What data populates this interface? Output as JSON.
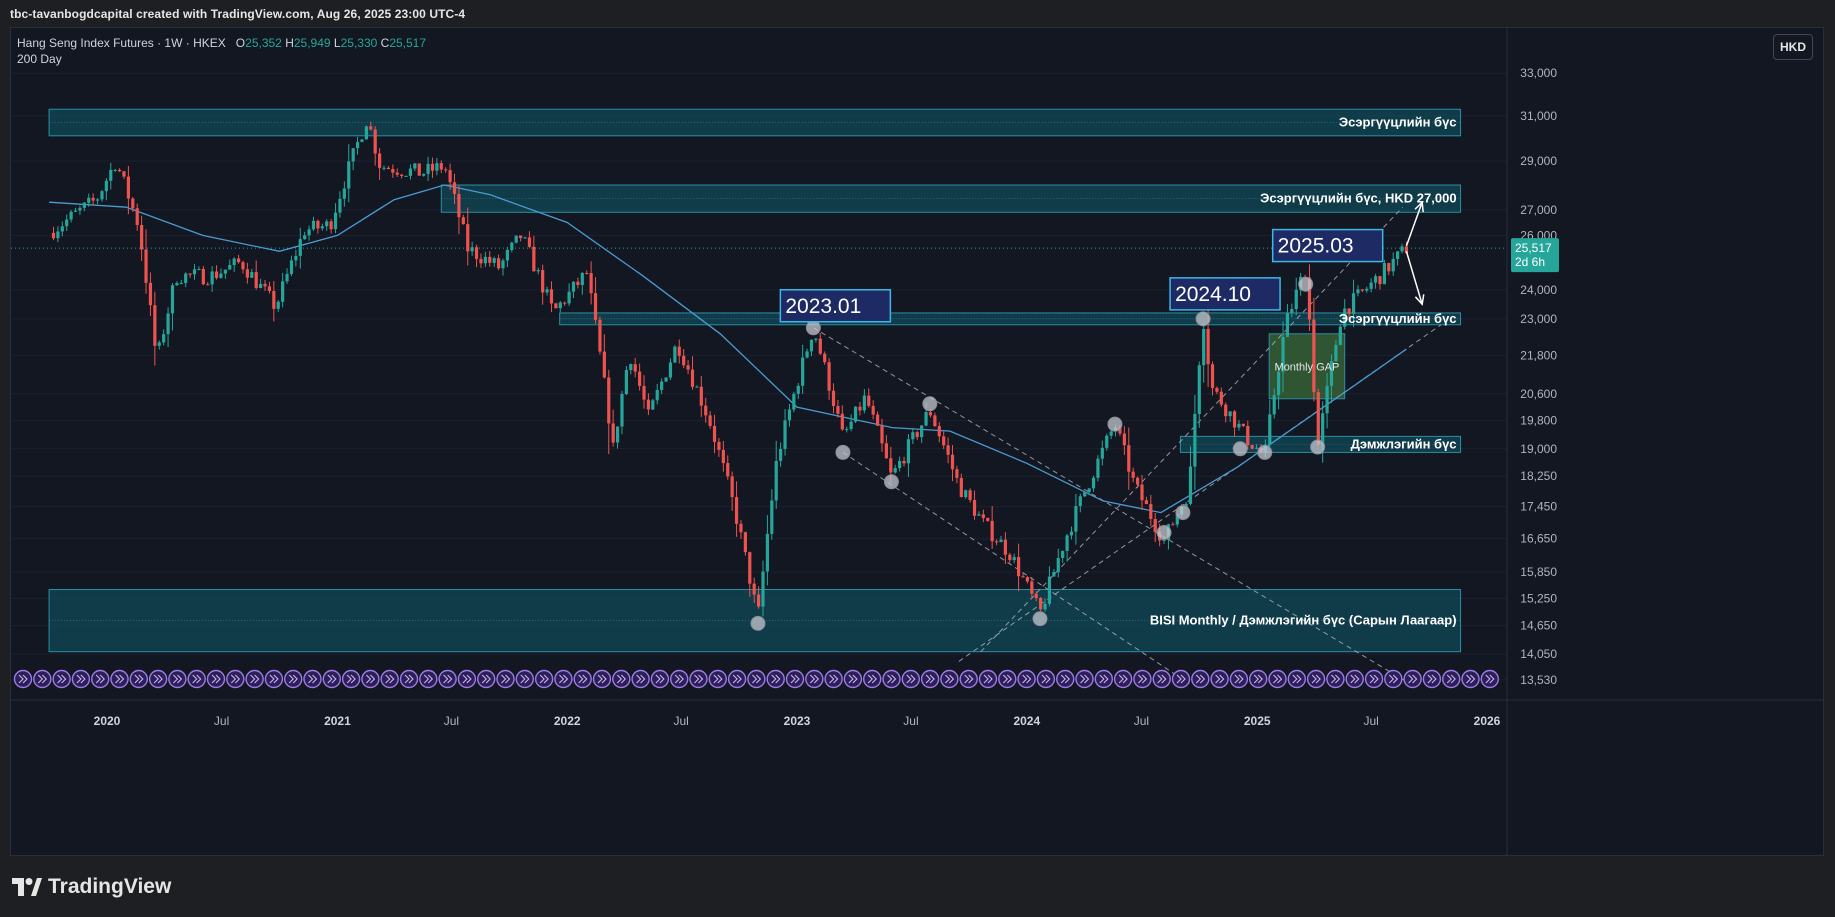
{
  "credit": "tbc-tavanbogdcapital created with TradingView.com, Aug 26, 2025 23:00 UTC-4",
  "legend": {
    "symbol_line": "Hang Seng Index Futures · 1W · HKEX",
    "o_label": "O",
    "o_value": "25,352",
    "h_label": "H",
    "h_value": "25,949",
    "l_label": "L",
    "l_value": "25,330",
    "c_label": "C",
    "c_value": "25,517",
    "indicator": "200 Day"
  },
  "currency": "HKD",
  "brand": "TradingView",
  "colors": {
    "up": "#26a69a",
    "down": "#ef5350",
    "ma": "#4a9bd1",
    "zone": "#0f5a6a",
    "gap_zone": "#3b6b3a",
    "label_box_border": "#3fb7e6",
    "label_box_fill": "#1d2a63",
    "price_tag": "#26a69a"
  },
  "chart_data": {
    "type": "candlestick",
    "timeframe": "1W",
    "x_ticks": [
      "2020",
      "Jul",
      "2021",
      "Jul",
      "2022",
      "Jul",
      "2023",
      "Jul",
      "2024",
      "Jul",
      "2025",
      "Jul",
      "2026"
    ],
    "y_ticks": [
      "33,000",
      "31,000",
      "29,000",
      "27,000",
      "26,000",
      "24,000",
      "23,000",
      "21,800",
      "20,600",
      "19,800",
      "19,000",
      "18,250",
      "17,450",
      "16,650",
      "15,850",
      "15,250",
      "14,650",
      "14,050",
      "13,530"
    ],
    "y_scale": "log",
    "y_range": [
      13250,
      34500
    ],
    "last_price": "25,517",
    "countdown": "2d 6h",
    "ohlc_last": {
      "open": 25352,
      "high": 25949,
      "low": 25330,
      "close": 25517
    },
    "keypoints": [
      {
        "date": "2019-10-01",
        "price": 26100
      },
      {
        "date": "2019-12-15",
        "price": 27400
      },
      {
        "date": "2020-01-15",
        "price": 29000
      },
      {
        "date": "2020-02-20",
        "price": 26400
      },
      {
        "date": "2020-03-20",
        "price": 21600
      },
      {
        "date": "2020-04-20",
        "price": 24500
      },
      {
        "date": "2020-06-15",
        "price": 24500
      },
      {
        "date": "2020-08-01",
        "price": 25000
      },
      {
        "date": "2020-09-25",
        "price": 23400
      },
      {
        "date": "2020-11-10",
        "price": 26200
      },
      {
        "date": "2020-12-20",
        "price": 26400
      },
      {
        "date": "2021-02-17",
        "price": 30900
      },
      {
        "date": "2021-03-10",
        "price": 28800
      },
      {
        "date": "2021-05-15",
        "price": 28500
      },
      {
        "date": "2021-06-20",
        "price": 28800
      },
      {
        "date": "2021-07-27",
        "price": 25500
      },
      {
        "date": "2021-09-15",
        "price": 24800
      },
      {
        "date": "2021-10-20",
        "price": 26000
      },
      {
        "date": "2021-12-10",
        "price": 23200
      },
      {
        "date": "2022-02-01",
        "price": 24600
      },
      {
        "date": "2022-03-15",
        "price": 19000
      },
      {
        "date": "2022-04-10",
        "price": 21900
      },
      {
        "date": "2022-05-10",
        "price": 19900
      },
      {
        "date": "2022-06-25",
        "price": 22200
      },
      {
        "date": "2022-08-15",
        "price": 19800
      },
      {
        "date": "2022-09-25",
        "price": 17300
      },
      {
        "date": "2022-10-31",
        "price": 14800
      },
      {
        "date": "2022-11-30",
        "price": 18700
      },
      {
        "date": "2023-01-27",
        "price": 22700
      },
      {
        "date": "2023-03-15",
        "price": 19300
      },
      {
        "date": "2023-04-20",
        "price": 20500
      },
      {
        "date": "2023-05-31",
        "price": 18200
      },
      {
        "date": "2023-07-31",
        "price": 20100
      },
      {
        "date": "2023-09-15",
        "price": 18000
      },
      {
        "date": "2023-10-25",
        "price": 17000
      },
      {
        "date": "2023-12-05",
        "price": 16300
      },
      {
        "date": "2024-01-22",
        "price": 14900
      },
      {
        "date": "2024-03-01",
        "price": 16600
      },
      {
        "date": "2024-05-20",
        "price": 19700
      },
      {
        "date": "2024-06-20",
        "price": 18000
      },
      {
        "date": "2024-08-06",
        "price": 16600
      },
      {
        "date": "2024-09-15",
        "price": 17900
      },
      {
        "date": "2024-10-07",
        "price": 23100
      },
      {
        "date": "2024-10-20",
        "price": 20800
      },
      {
        "date": "2024-12-15",
        "price": 19300
      },
      {
        "date": "2025-01-13",
        "price": 18800
      },
      {
        "date": "2025-02-15",
        "price": 22800
      },
      {
        "date": "2025-03-19",
        "price": 24800
      },
      {
        "date": "2025-04-07",
        "price": 19000
      },
      {
        "date": "2025-05-15",
        "price": 23200
      },
      {
        "date": "2025-07-15",
        "price": 24500
      },
      {
        "date": "2025-08-26",
        "price": 25517
      }
    ],
    "ma_keypoints": [
      {
        "date": "2019-10-01",
        "price": 27300
      },
      {
        "date": "2020-02-01",
        "price": 27100
      },
      {
        "date": "2020-06-01",
        "price": 26000
      },
      {
        "date": "2020-10-01",
        "price": 25400
      },
      {
        "date": "2021-01-01",
        "price": 26000
      },
      {
        "date": "2021-04-01",
        "price": 27400
      },
      {
        "date": "2021-06-20",
        "price": 28000
      },
      {
        "date": "2021-09-01",
        "price": 27600
      },
      {
        "date": "2022-01-01",
        "price": 26500
      },
      {
        "date": "2022-05-01",
        "price": 24500
      },
      {
        "date": "2022-09-01",
        "price": 22500
      },
      {
        "date": "2023-01-01",
        "price": 20200
      },
      {
        "date": "2023-06-01",
        "price": 19600
      },
      {
        "date": "2023-09-01",
        "price": 19500
      },
      {
        "date": "2024-01-01",
        "price": 18600
      },
      {
        "date": "2024-05-01",
        "price": 17600
      },
      {
        "date": "2024-08-01",
        "price": 17300
      },
      {
        "date": "2024-12-01",
        "price": 18500
      },
      {
        "date": "2025-04-01",
        "price": 20000
      },
      {
        "date": "2025-08-26",
        "price": 22000
      }
    ],
    "zones": [
      {
        "label": "Эсэргүүцлийн бүс",
        "from": "2019-10-01",
        "to": "2025-11-20",
        "low": 30100,
        "high": 31300
      },
      {
        "label": "Эсэргүүцлийн бүс, HKD 27,000",
        "from": "2021-06-15",
        "to": "2025-11-20",
        "low": 26900,
        "high": 28000
      },
      {
        "label": "Эсэргүүцлийн бүс",
        "from": "2021-12-20",
        "to": "2025-11-20",
        "low": 22800,
        "high": 23200
      },
      {
        "label": "Дэмжлэгийн бүс",
        "from": "2024-09-01",
        "to": "2025-11-20",
        "low": 18900,
        "high": 19350
      },
      {
        "label": "BISI Monthly / Дэмжлэгийн бүс (Сарын Лаагаар)",
        "from": "2019-10-01",
        "to": "2025-11-20",
        "low": 14100,
        "high": 15450
      }
    ],
    "gap_box": {
      "label": "Monthly GAP",
      "from": "2025-01-20",
      "to": "2025-05-20",
      "low": 20450,
      "high": 22500
    },
    "annotations": [
      {
        "text": "2023.01",
        "date": "2023-01-27",
        "price": 22700
      },
      {
        "text": "2024.10",
        "date": "2024-10-07",
        "price": 23100
      },
      {
        "text": "2025.03",
        "date": "2025-03-19",
        "price": 24800
      }
    ],
    "markers": [
      {
        "date": "2022-10-31",
        "price": 14700
      },
      {
        "date": "2023-01-27",
        "price": 22700
      },
      {
        "date": "2023-03-15",
        "price": 18900
      },
      {
        "date": "2023-05-31",
        "price": 18100
      },
      {
        "date": "2023-07-31",
        "price": 20300
      },
      {
        "date": "2024-01-22",
        "price": 14800
      },
      {
        "date": "2024-05-20",
        "price": 19700
      },
      {
        "date": "2024-08-06",
        "price": 16800
      },
      {
        "date": "2024-09-05",
        "price": 17300
      },
      {
        "date": "2024-10-07",
        "price": 23000
      },
      {
        "date": "2024-12-05",
        "price": 19000
      },
      {
        "date": "2025-01-13",
        "price": 18900
      },
      {
        "date": "2025-03-19",
        "price": 24200
      },
      {
        "date": "2025-04-07",
        "price": 19050
      }
    ],
    "trendlines": [
      {
        "from": {
          "date": "2023-01-27",
          "price": 22700
        },
        "to": {
          "date": "2025-09-01",
          "price": 13450
        }
      },
      {
        "from": {
          "date": "2023-03-15",
          "price": 18900
        },
        "to": {
          "date": "2024-09-15",
          "price": 13450
        }
      },
      {
        "from": {
          "date": "2023-10-20",
          "price": 14100
        },
        "to": {
          "date": "2025-08-20",
          "price": 27100
        }
      },
      {
        "from": {
          "date": "2023-09-15",
          "price": 13900
        },
        "to": {
          "date": "2025-10-20",
          "price": 22800
        }
      }
    ],
    "arrows": [
      {
        "from": {
          "date": "2025-08-26",
          "price": 25600
        },
        "to": {
          "date": "2025-09-20",
          "price": 27300
        }
      },
      {
        "from": {
          "date": "2025-08-26",
          "price": 25400
        },
        "to": {
          "date": "2025-09-20",
          "price": 23500
        }
      }
    ]
  }
}
